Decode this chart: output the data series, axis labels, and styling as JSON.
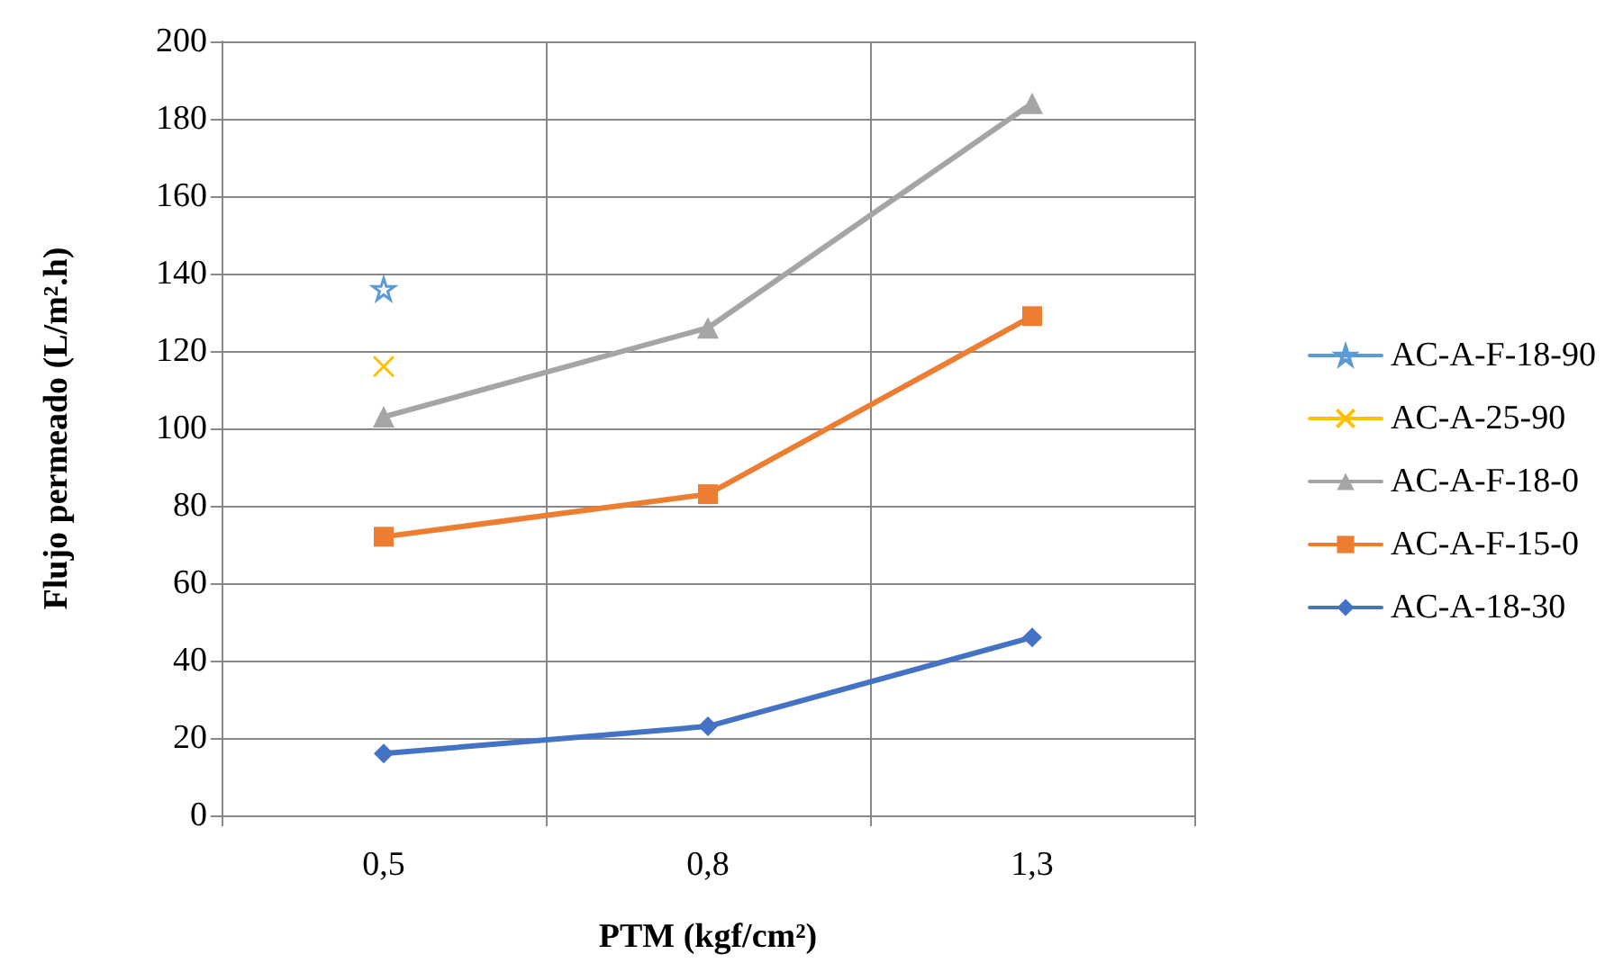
{
  "chart_data": {
    "type": "line",
    "xlabel": "PTM (kgf/cm²)",
    "ylabel": "Flujo permeado (L/m².h)",
    "categories": [
      "0,5",
      "0,8",
      "1,3"
    ],
    "series": [
      {
        "name": "AC-A-F-18-90",
        "color": "#5b9bd5",
        "marker": "star",
        "values": [
          136,
          null,
          null
        ]
      },
      {
        "name": "AC-A-25-90",
        "color": "#ffc000",
        "marker": "cross",
        "values": [
          116,
          null,
          null
        ]
      },
      {
        "name": "AC-A-F-18-0",
        "color": "#a5a5a5",
        "marker": "triangle",
        "values": [
          103,
          126,
          184
        ]
      },
      {
        "name": "AC-A-F-15-0",
        "color": "#ed7d31",
        "marker": "square",
        "values": [
          72,
          83,
          129
        ]
      },
      {
        "name": "AC-A-18-30",
        "color": "#4472c4",
        "marker": "diamond",
        "values": [
          16,
          23,
          46
        ]
      }
    ],
    "ylim": [
      0,
      200
    ],
    "yticks": [
      0,
      20,
      40,
      60,
      80,
      100,
      120,
      140,
      160,
      180,
      200
    ],
    "grid": true,
    "legend": "right",
    "line_style": "solid"
  }
}
